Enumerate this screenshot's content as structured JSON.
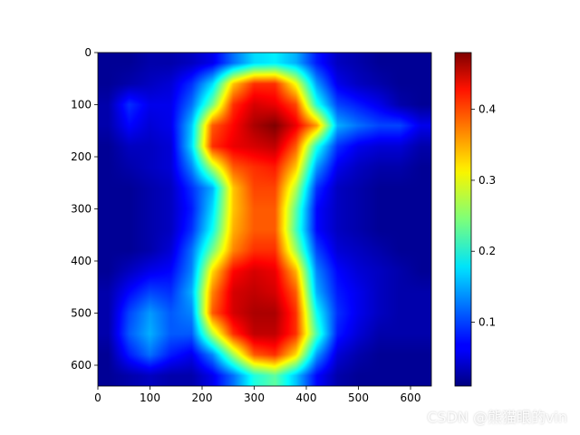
{
  "chart_data": {
    "type": "heatmap",
    "title": "",
    "xlabel": "",
    "ylabel": "",
    "xlim": [
      0,
      640
    ],
    "ylim": [
      640,
      0
    ],
    "y_inverted": true,
    "colormap": "jet",
    "x_ticks": [
      0,
      100,
      200,
      300,
      400,
      500,
      600
    ],
    "y_ticks": [
      0,
      100,
      200,
      300,
      400,
      500,
      600
    ],
    "colorbar": {
      "range": [
        0.01,
        0.48
      ],
      "ticks": [
        0.1,
        0.2,
        0.3,
        0.4
      ],
      "tick_labels": [
        "0.1",
        "0.2",
        "0.3",
        "0.4"
      ]
    },
    "grid_size": 16,
    "grid_step": 40,
    "values": [
      [
        0.02,
        0.02,
        0.03,
        0.03,
        0.04,
        0.06,
        0.12,
        0.17,
        0.18,
        0.15,
        0.08,
        0.04,
        0.03,
        0.02,
        0.02,
        0.02
      ],
      [
        0.02,
        0.03,
        0.04,
        0.05,
        0.09,
        0.17,
        0.33,
        0.4,
        0.4,
        0.3,
        0.14,
        0.06,
        0.04,
        0.03,
        0.02,
        0.02
      ],
      [
        0.03,
        0.09,
        0.06,
        0.06,
        0.12,
        0.24,
        0.4,
        0.44,
        0.43,
        0.39,
        0.2,
        0.1,
        0.08,
        0.06,
        0.03,
        0.02
      ],
      [
        0.03,
        0.07,
        0.05,
        0.06,
        0.16,
        0.38,
        0.42,
        0.46,
        0.48,
        0.43,
        0.35,
        0.15,
        0.12,
        0.1,
        0.1,
        0.06
      ],
      [
        0.02,
        0.04,
        0.04,
        0.05,
        0.17,
        0.4,
        0.43,
        0.44,
        0.45,
        0.38,
        0.2,
        0.09,
        0.06,
        0.05,
        0.05,
        0.03
      ],
      [
        0.02,
        0.03,
        0.04,
        0.05,
        0.13,
        0.27,
        0.38,
        0.4,
        0.41,
        0.33,
        0.14,
        0.06,
        0.04,
        0.03,
        0.03,
        0.02
      ],
      [
        0.02,
        0.02,
        0.03,
        0.04,
        0.09,
        0.15,
        0.33,
        0.39,
        0.39,
        0.27,
        0.09,
        0.04,
        0.03,
        0.02,
        0.02,
        0.02
      ],
      [
        0.02,
        0.02,
        0.03,
        0.04,
        0.08,
        0.17,
        0.33,
        0.38,
        0.38,
        0.23,
        0.07,
        0.04,
        0.03,
        0.02,
        0.02,
        0.02
      ],
      [
        0.02,
        0.02,
        0.03,
        0.04,
        0.09,
        0.19,
        0.34,
        0.38,
        0.38,
        0.22,
        0.07,
        0.04,
        0.03,
        0.02,
        0.02,
        0.02
      ],
      [
        0.02,
        0.02,
        0.03,
        0.05,
        0.12,
        0.24,
        0.36,
        0.4,
        0.4,
        0.26,
        0.1,
        0.05,
        0.04,
        0.03,
        0.02,
        0.02
      ],
      [
        0.02,
        0.04,
        0.06,
        0.07,
        0.13,
        0.32,
        0.42,
        0.44,
        0.43,
        0.34,
        0.13,
        0.07,
        0.05,
        0.04,
        0.03,
        0.02
      ],
      [
        0.03,
        0.07,
        0.1,
        0.09,
        0.15,
        0.36,
        0.44,
        0.45,
        0.44,
        0.38,
        0.15,
        0.08,
        0.06,
        0.04,
        0.03,
        0.03
      ],
      [
        0.03,
        0.1,
        0.14,
        0.11,
        0.13,
        0.38,
        0.44,
        0.46,
        0.46,
        0.4,
        0.19,
        0.09,
        0.06,
        0.04,
        0.03,
        0.03
      ],
      [
        0.03,
        0.11,
        0.15,
        0.11,
        0.11,
        0.27,
        0.4,
        0.45,
        0.45,
        0.4,
        0.22,
        0.08,
        0.05,
        0.03,
        0.03,
        0.03
      ],
      [
        0.02,
        0.08,
        0.12,
        0.08,
        0.06,
        0.13,
        0.26,
        0.38,
        0.4,
        0.32,
        0.14,
        0.05,
        0.03,
        0.02,
        0.02,
        0.02
      ],
      [
        0.02,
        0.03,
        0.04,
        0.03,
        0.03,
        0.06,
        0.12,
        0.2,
        0.23,
        0.16,
        0.07,
        0.03,
        0.02,
        0.02,
        0.02,
        0.02
      ]
    ]
  },
  "watermark": {
    "text": "CSDN @熊猫眼的vin"
  }
}
